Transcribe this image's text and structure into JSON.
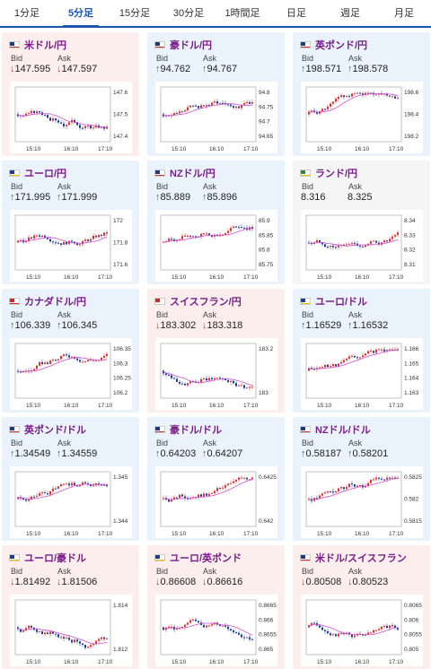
{
  "tabs": [
    {
      "label": "1分足",
      "active": false
    },
    {
      "label": "5分足",
      "active": true
    },
    {
      "label": "15分足",
      "active": false
    },
    {
      "label": "30分足",
      "active": false
    },
    {
      "label": "1時間足",
      "active": false
    },
    {
      "label": "日足",
      "active": false
    },
    {
      "label": "週足",
      "active": false
    },
    {
      "label": "月足",
      "active": false
    }
  ],
  "labels": {
    "bid": "Bid",
    "ask": "Ask"
  },
  "colors": {
    "down_bg": "#fdeeee",
    "up_bg": "#eaf3fb",
    "flat_bg": "#f5f5f5",
    "pair_text": "#7a1c8a",
    "up_arrow": "#2a8a3a",
    "down_arrow": "#d93333",
    "candle_up": "#e03030",
    "candle_down": "#1a3aa0",
    "ma_line": "#d050d0",
    "tab_active": "#1a56b0"
  },
  "cards": [
    {
      "pair": "米ドル/円",
      "flag": "us",
      "trend": "down",
      "bid_arrow": "↓",
      "bid": "147.595",
      "ask_arrow": "↓",
      "ask": "147.597",
      "y_ticks": [
        "147.6",
        "147.5",
        "147.4"
      ],
      "x_ticks": [
        "15:10",
        "16:10",
        "17:10"
      ]
    },
    {
      "pair": "豪ドル/円",
      "flag": "au",
      "trend": "up",
      "bid_arrow": "↑",
      "bid": "94.762",
      "ask_arrow": "↑",
      "ask": "94.767",
      "y_ticks": [
        "94.8",
        "94.75",
        "94.7",
        "94.65"
      ],
      "x_ticks": [
        "15:10",
        "16:10",
        "17:10"
      ]
    },
    {
      "pair": "英ポンド/円",
      "flag": "uk",
      "trend": "up",
      "bid_arrow": "↑",
      "bid": "198.571",
      "ask_arrow": "↑",
      "ask": "198.578",
      "y_ticks": [
        "198.6",
        "198.4",
        "198.2"
      ],
      "x_ticks": [
        "15:10",
        "16:10",
        "17:10"
      ]
    },
    {
      "pair": "ユーロ/円",
      "flag": "eu",
      "trend": "up",
      "bid_arrow": "↑",
      "bid": "171.995",
      "ask_arrow": "↑",
      "ask": "171.999",
      "y_ticks": [
        "172",
        "171.8",
        "171.6"
      ],
      "x_ticks": [
        "15:10",
        "16:10",
        "17:10"
      ]
    },
    {
      "pair": "NZドル/円",
      "flag": "nz",
      "trend": "up",
      "bid_arrow": "↑",
      "bid": "85.889",
      "ask_arrow": "↑",
      "ask": "85.896",
      "y_ticks": [
        "85.9",
        "85.85",
        "85.8",
        "85.75"
      ],
      "x_ticks": [
        "15:10",
        "16:10",
        "17:10"
      ]
    },
    {
      "pair": "ランド/円",
      "flag": "za",
      "trend": "flat",
      "bid_arrow": "",
      "bid": "8.316",
      "ask_arrow": "",
      "ask": "8.325",
      "y_ticks": [
        "8.34",
        "8.33",
        "8.32",
        "8.31"
      ],
      "x_ticks": [
        "15:10",
        "16:10",
        "17:10"
      ]
    },
    {
      "pair": "カナダドル/円",
      "flag": "ca",
      "trend": "up",
      "bid_arrow": "↑",
      "bid": "106.339",
      "ask_arrow": "↑",
      "ask": "106.345",
      "y_ticks": [
        "106.35",
        "106.3",
        "106.25",
        "106.2"
      ],
      "x_ticks": [
        "15:10",
        "16:10",
        "17:10"
      ]
    },
    {
      "pair": "スイスフラン/円",
      "flag": "ch",
      "trend": "down",
      "bid_arrow": "↓",
      "bid": "183.302",
      "ask_arrow": "↓",
      "ask": "183.318",
      "y_ticks": [
        "183.2",
        "183"
      ],
      "x_ticks": [
        "15:10",
        "16:10",
        "17:10"
      ]
    },
    {
      "pair": "ユーロ/ドル",
      "flag": "eu",
      "trend": "up",
      "bid_arrow": "↑",
      "bid": "1.16529",
      "ask_arrow": "↑",
      "ask": "1.16532",
      "y_ticks": [
        "1.166",
        "1.165",
        "1.164",
        "1.163"
      ],
      "x_ticks": [
        "15:10",
        "16:10",
        "17:10"
      ]
    },
    {
      "pair": "英ポンド/ドル",
      "flag": "uk",
      "trend": "up",
      "bid_arrow": "↑",
      "bid": "1.34549",
      "ask_arrow": "↑",
      "ask": "1.34559",
      "y_ticks": [
        "1.345",
        "1.344"
      ],
      "x_ticks": [
        "15:10",
        "16:10",
        "17:10"
      ]
    },
    {
      "pair": "豪ドル/ドル",
      "flag": "au",
      "trend": "up",
      "bid_arrow": "↑",
      "bid": "0.64203",
      "ask_arrow": "↑",
      "ask": "0.64207",
      "y_ticks": [
        "0.6425",
        "0.642"
      ],
      "x_ticks": [
        "15:10",
        "16:10",
        "17:10"
      ]
    },
    {
      "pair": "NZドル/ドル",
      "flag": "nz",
      "trend": "up",
      "bid_arrow": "↑",
      "bid": "0.58187",
      "ask_arrow": "↑",
      "ask": "0.58201",
      "y_ticks": [
        "0.5825",
        "0.582",
        "0.5815"
      ],
      "x_ticks": [
        "15:10",
        "16:10",
        "17:10"
      ]
    },
    {
      "pair": "ユーロ/豪ドル",
      "flag": "eu",
      "trend": "down",
      "bid_arrow": "↓",
      "bid": "1.81492",
      "ask_arrow": "↓",
      "ask": "1.81506",
      "y_ticks": [
        "1.814",
        "1.812"
      ],
      "x_ticks": [
        "15:10",
        "16:10",
        "17:10"
      ]
    },
    {
      "pair": "ユーロ/英ポンド",
      "flag": "eu",
      "trend": "down",
      "bid_arrow": "↓",
      "bid": "0.86608",
      "ask_arrow": "↓",
      "ask": "0.86616",
      "y_ticks": [
        "0.8665",
        "0.866",
        "0.8655",
        "0.865"
      ],
      "x_ticks": [
        "15:10",
        "16:10",
        "17:10"
      ]
    },
    {
      "pair": "米ドル/スイスフラン",
      "flag": "us",
      "trend": "down",
      "bid_arrow": "↓",
      "bid": "0.80508",
      "ask_arrow": "↓",
      "ask": "0.80523",
      "y_ticks": [
        "0.8065",
        "0.806",
        "0.8055",
        "0.805"
      ],
      "x_ticks": [
        "15:10",
        "16:10",
        "17:10"
      ]
    }
  ]
}
